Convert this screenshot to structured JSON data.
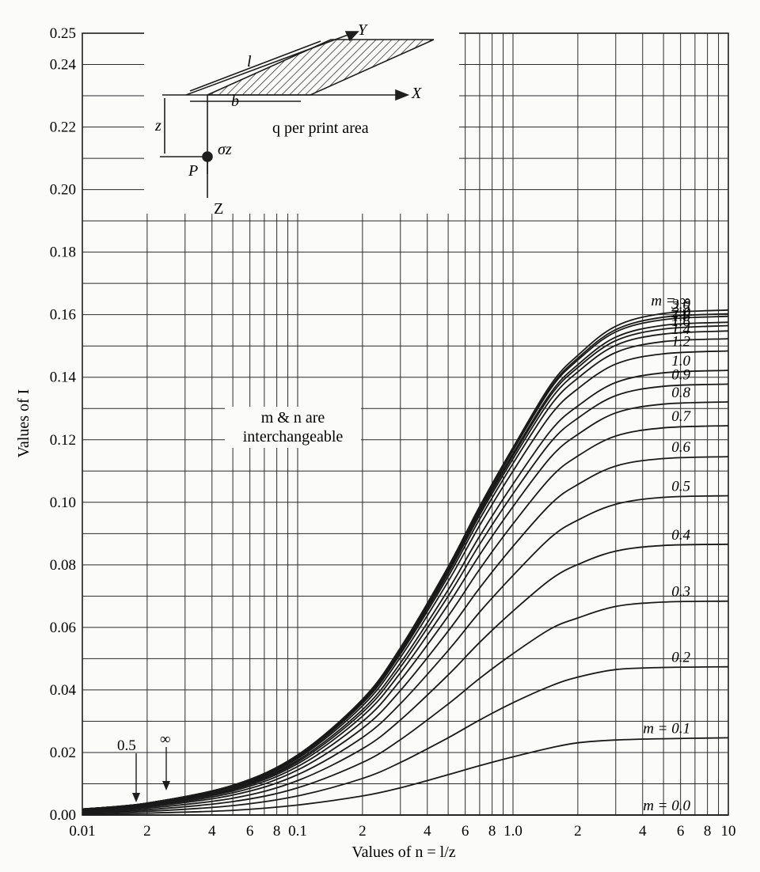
{
  "chart_data": {
    "type": "line",
    "title": "",
    "xlabel": "Values of n = l/z",
    "ylabel": "Values of I",
    "xscale": "log",
    "xlim": [
      0.01,
      10
    ],
    "ylim": [
      0,
      0.25
    ],
    "grid": true,
    "x": [
      0.01,
      0.02,
      0.05,
      0.1,
      0.2,
      0.3,
      0.5,
      0.7,
      1.0,
      1.5,
      2,
      3,
      5,
      10
    ],
    "series": [
      {
        "name": "m = 0.0",
        "values": [
          0,
          0,
          0,
          0,
          0,
          0,
          0,
          0,
          0,
          0,
          0,
          0,
          0,
          0
        ]
      },
      {
        "name": "m = 0.1",
        "values": [
          0.0003,
          0.0006,
          0.0015,
          0.0032,
          0.0061,
          0.0087,
          0.0129,
          0.0158,
          0.0186,
          0.0215,
          0.0231,
          0.024,
          0.0244,
          0.0247
        ]
      },
      {
        "name": "0.2",
        "values": [
          0.0006,
          0.0012,
          0.003,
          0.0061,
          0.0117,
          0.0168,
          0.0247,
          0.0304,
          0.0359,
          0.0413,
          0.0441,
          0.0465,
          0.0472,
          0.0474
        ]
      },
      {
        "name": "0.3",
        "values": [
          0.0009,
          0.0017,
          0.0043,
          0.0087,
          0.0168,
          0.0241,
          0.0355,
          0.0437,
          0.0516,
          0.0596,
          0.063,
          0.0667,
          0.0681,
          0.0684
        ]
      },
      {
        "name": "0.4",
        "values": [
          0.0011,
          0.0022,
          0.0054,
          0.011,
          0.0212,
          0.0304,
          0.0448,
          0.0552,
          0.0652,
          0.0754,
          0.0801,
          0.0844,
          0.0862,
          0.0866
        ]
      },
      {
        "name": "0.5",
        "values": [
          0.0013,
          0.0026,
          0.0064,
          0.0129,
          0.0248,
          0.0356,
          0.0526,
          0.0649,
          0.0766,
          0.0888,
          0.0943,
          0.0994,
          0.1016,
          0.1021
        ]
      },
      {
        "name": "0.6",
        "values": [
          0.0014,
          0.0029,
          0.0071,
          0.0144,
          0.0277,
          0.0398,
          0.0588,
          0.0726,
          0.0859,
          0.0995,
          0.1057,
          0.1116,
          0.114,
          0.1146
        ]
      },
      {
        "name": "0.7",
        "values": [
          0.0016,
          0.0031,
          0.0077,
          0.0155,
          0.0299,
          0.0431,
          0.0636,
          0.0786,
          0.0931,
          0.108,
          0.1148,
          0.1212,
          0.1238,
          0.1245
        ]
      },
      {
        "name": "0.8",
        "values": [
          0.0016,
          0.0033,
          0.0081,
          0.0164,
          0.0316,
          0.0455,
          0.0673,
          0.0832,
          0.0986,
          0.1145,
          0.1217,
          0.1286,
          0.1314,
          0.1321
        ]
      },
      {
        "name": "0.9",
        "values": [
          0.0017,
          0.0034,
          0.0084,
          0.017,
          0.0328,
          0.0473,
          0.07,
          0.0866,
          0.1027,
          0.1193,
          0.1269,
          0.1341,
          0.1371,
          0.1378
        ]
      },
      {
        "name": "1.0",
        "values": [
          0.0018,
          0.0035,
          0.0087,
          0.0175,
          0.0337,
          0.0486,
          0.072,
          0.0892,
          0.1058,
          0.123,
          0.1308,
          0.1383,
          0.1414,
          0.1422
        ]
      },
      {
        "name": "1.2",
        "values": [
          0.0018,
          0.0036,
          0.009,
          0.0181,
          0.0349,
          0.0504,
          0.0747,
          0.0926,
          0.11,
          0.128,
          0.1363,
          0.1442,
          0.1475,
          0.1484
        ]
      },
      {
        "name": "1.4",
        "values": [
          0.0019,
          0.0037,
          0.0092,
          0.0185,
          0.0357,
          0.0515,
          0.0763,
          0.0946,
          0.1124,
          0.1311,
          0.1397,
          0.1479,
          0.1514,
          0.1523
        ]
      },
      {
        "name": "1.6",
        "values": [
          0.0019,
          0.0037,
          0.0093,
          0.0187,
          0.0361,
          0.0521,
          0.0773,
          0.0959,
          0.1139,
          0.133,
          0.1417,
          0.1502,
          0.1538,
          0.1548
        ]
      },
      {
        "name": "1.8",
        "values": [
          0.0019,
          0.0038,
          0.0094,
          0.0189,
          0.0364,
          0.0526,
          0.0779,
          0.0967,
          0.1149,
          0.1343,
          0.1431,
          0.1517,
          0.1554,
          0.1565
        ]
      },
      {
        "name": "2.0",
        "values": [
          0.0019,
          0.0038,
          0.0094,
          0.019,
          0.0366,
          0.0528,
          0.0784,
          0.0973,
          0.1156,
          0.1351,
          0.144,
          0.1528,
          0.1566,
          0.1576
        ]
      },
      {
        "name": "2.5",
        "values": [
          0.0019,
          0.0038,
          0.0095,
          0.0191,
          0.0368,
          0.0532,
          0.079,
          0.098,
          0.1166,
          0.1364,
          0.1455,
          0.1545,
          0.1584,
          0.1595
        ]
      },
      {
        "name": "3.0",
        "values": [
          0.0019,
          0.0038,
          0.0095,
          0.0192,
          0.037,
          0.0534,
          0.0792,
          0.0984,
          0.117,
          0.1369,
          0.1461,
          0.1552,
          0.1592,
          0.1603
        ]
      },
      {
        "name": "m = ∞",
        "values": [
          0.0019,
          0.0038,
          0.0095,
          0.0192,
          0.037,
          0.0535,
          0.0794,
          0.0987,
          0.1175,
          0.1377,
          0.147,
          0.1563,
          0.1604,
          0.1615
        ]
      }
    ],
    "annotations": [
      "m & n are interchangeable",
      "q per print area",
      "0.5",
      "∞"
    ],
    "y_ticks": [
      "0.00",
      "0.02",
      "0.04",
      "0.06",
      "0.08",
      "0.10",
      "0.12",
      "0.14",
      "0.16",
      "0.18",
      "0.20",
      "0.22",
      "0.24",
      "0.25"
    ],
    "x_ticks": [
      "0.01",
      "2",
      "4",
      "6",
      "8",
      "0.1",
      "2",
      "4",
      "6",
      "8",
      "1.0",
      "2",
      "4",
      "6",
      "8",
      "10"
    ],
    "diagram_labels": {
      "y_axis": "Y",
      "x_axis": "X",
      "z_axis": "Z",
      "length": "l",
      "width": "b",
      "depth": "z",
      "point": "P",
      "stress": "σz"
    }
  }
}
